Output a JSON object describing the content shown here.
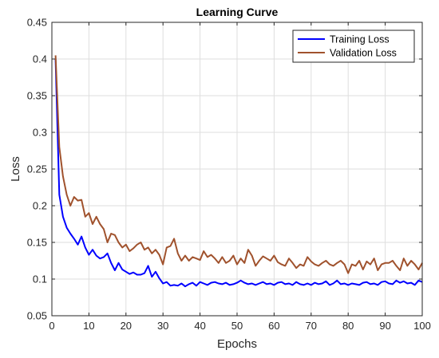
{
  "chart_data": {
    "type": "line",
    "title": "Learning Curve",
    "xlabel": "Epochs",
    "ylabel": "Loss",
    "xlim": [
      0,
      100
    ],
    "ylim": [
      0.05,
      0.45
    ],
    "xticks": [
      0,
      10,
      20,
      30,
      40,
      50,
      60,
      70,
      80,
      90,
      100
    ],
    "yticks": [
      0.05,
      0.1,
      0.15,
      0.2,
      0.25,
      0.3,
      0.35,
      0.4,
      0.45
    ],
    "xtick_labels": [
      "0",
      "10",
      "20",
      "30",
      "40",
      "50",
      "60",
      "70",
      "80",
      "90",
      "100"
    ],
    "ytick_labels": [
      "0.05",
      "0.1",
      "0.15",
      "0.2",
      "0.25",
      "0.3",
      "0.35",
      "0.4",
      "0.45"
    ],
    "grid": true,
    "legend_position": "top-right",
    "series": [
      {
        "name": "Training Loss",
        "color": "#0000ff",
        "x": [
          1,
          2,
          3,
          4,
          5,
          6,
          7,
          8,
          9,
          10,
          11,
          12,
          13,
          14,
          15,
          16,
          17,
          18,
          19,
          20,
          21,
          22,
          23,
          24,
          25,
          26,
          27,
          28,
          29,
          30,
          31,
          32,
          33,
          34,
          35,
          36,
          37,
          38,
          39,
          40,
          41,
          42,
          43,
          44,
          45,
          46,
          47,
          48,
          49,
          50,
          51,
          52,
          53,
          54,
          55,
          56,
          57,
          58,
          59,
          60,
          61,
          62,
          63,
          64,
          65,
          66,
          67,
          68,
          69,
          70,
          71,
          72,
          73,
          74,
          75,
          76,
          77,
          78,
          79,
          80,
          81,
          82,
          83,
          84,
          85,
          86,
          87,
          88,
          89,
          90,
          91,
          92,
          93,
          94,
          95,
          96,
          97,
          98,
          99,
          100
        ],
        "y": [
          0.4,
          0.215,
          0.185,
          0.17,
          0.162,
          0.155,
          0.147,
          0.158,
          0.143,
          0.133,
          0.14,
          0.132,
          0.128,
          0.13,
          0.135,
          0.122,
          0.112,
          0.122,
          0.113,
          0.11,
          0.107,
          0.109,
          0.106,
          0.106,
          0.108,
          0.118,
          0.103,
          0.11,
          0.101,
          0.094,
          0.096,
          0.091,
          0.092,
          0.091,
          0.094,
          0.09,
          0.093,
          0.095,
          0.091,
          0.096,
          0.094,
          0.092,
          0.095,
          0.096,
          0.094,
          0.093,
          0.095,
          0.092,
          0.093,
          0.095,
          0.098,
          0.095,
          0.093,
          0.094,
          0.092,
          0.094,
          0.096,
          0.093,
          0.094,
          0.092,
          0.095,
          0.096,
          0.093,
          0.094,
          0.092,
          0.096,
          0.093,
          0.092,
          0.094,
          0.092,
          0.095,
          0.093,
          0.094,
          0.097,
          0.092,
          0.094,
          0.098,
          0.093,
          0.094,
          0.092,
          0.094,
          0.093,
          0.092,
          0.095,
          0.096,
          0.093,
          0.094,
          0.092,
          0.096,
          0.097,
          0.094,
          0.093,
          0.098,
          0.095,
          0.097,
          0.094,
          0.095,
          0.092,
          0.098,
          0.096
        ]
      },
      {
        "name": "Validation Loss",
        "color": "#a0522d",
        "x": [
          1,
          2,
          3,
          4,
          5,
          6,
          7,
          8,
          9,
          10,
          11,
          12,
          13,
          14,
          15,
          16,
          17,
          18,
          19,
          20,
          21,
          22,
          23,
          24,
          25,
          26,
          27,
          28,
          29,
          30,
          31,
          32,
          33,
          34,
          35,
          36,
          37,
          38,
          39,
          40,
          41,
          42,
          43,
          44,
          45,
          46,
          47,
          48,
          49,
          50,
          51,
          52,
          53,
          54,
          55,
          56,
          57,
          58,
          59,
          60,
          61,
          62,
          63,
          64,
          65,
          66,
          67,
          68,
          69,
          70,
          71,
          72,
          73,
          74,
          75,
          76,
          77,
          78,
          79,
          80,
          81,
          82,
          83,
          84,
          85,
          86,
          87,
          88,
          89,
          90,
          91,
          92,
          93,
          94,
          95,
          96,
          97,
          98,
          99,
          100
        ],
        "y": [
          0.405,
          0.28,
          0.24,
          0.215,
          0.2,
          0.212,
          0.207,
          0.208,
          0.185,
          0.19,
          0.175,
          0.185,
          0.175,
          0.168,
          0.15,
          0.162,
          0.16,
          0.15,
          0.143,
          0.147,
          0.138,
          0.142,
          0.147,
          0.15,
          0.14,
          0.143,
          0.135,
          0.14,
          0.133,
          0.12,
          0.143,
          0.145,
          0.155,
          0.135,
          0.125,
          0.132,
          0.125,
          0.13,
          0.128,
          0.126,
          0.138,
          0.13,
          0.133,
          0.128,
          0.122,
          0.13,
          0.122,
          0.125,
          0.132,
          0.12,
          0.128,
          0.122,
          0.14,
          0.132,
          0.118,
          0.125,
          0.131,
          0.128,
          0.125,
          0.132,
          0.123,
          0.12,
          0.118,
          0.128,
          0.122,
          0.115,
          0.12,
          0.118,
          0.13,
          0.124,
          0.12,
          0.118,
          0.122,
          0.125,
          0.12,
          0.118,
          0.122,
          0.125,
          0.12,
          0.108,
          0.12,
          0.118,
          0.125,
          0.113,
          0.124,
          0.12,
          0.128,
          0.112,
          0.12,
          0.122,
          0.122,
          0.125,
          0.118,
          0.112,
          0.128,
          0.118,
          0.125,
          0.12,
          0.113,
          0.122
        ]
      }
    ]
  }
}
